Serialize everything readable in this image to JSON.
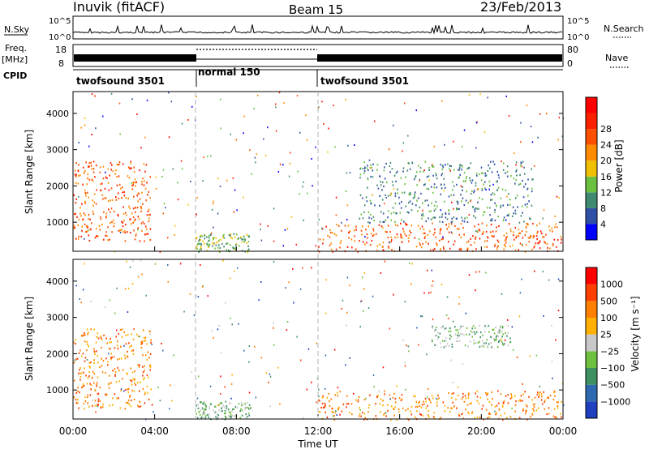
{
  "header": {
    "station": "Inuvik (fitACF)",
    "beam": "Beam 15",
    "date": "23/Feb/2013"
  },
  "left_labels": {
    "nsky": "N.Sky",
    "freq": "Freq.",
    "freq_unit": "[MHz]",
    "cpid": "CPID"
  },
  "right_labels": {
    "nsearch": "N.Search",
    "nave": "Nave"
  },
  "noise_panel": {
    "left_ticks": [
      "10^5",
      "10^0"
    ],
    "right_ticks": [
      "10^5",
      "10^0"
    ]
  },
  "freq_panel": {
    "left_ticks": [
      "18",
      "8"
    ],
    "right_ticks": [
      "80",
      "0"
    ]
  },
  "cpid_panel": {
    "segments": [
      {
        "start_h": 0,
        "end_h": 6,
        "label": "twofsound 3501"
      },
      {
        "start_h": 6,
        "end_h": 12,
        "label": "normal 150"
      },
      {
        "start_h": 12,
        "end_h": 24,
        "label": "twofsound 3501"
      }
    ]
  },
  "chart_data": [
    {
      "type": "heatmap",
      "title": "",
      "xlabel": "",
      "ylabel": "Slant Range [km]",
      "xlim": [
        0,
        24
      ],
      "ylim": [
        200,
        4600
      ],
      "y_ticks": [
        1000,
        2000,
        3000,
        4000
      ],
      "colorbar": {
        "label": "Power [dB]",
        "ticks": [
          "4",
          "8",
          "12",
          "16",
          "20",
          "24",
          "28"
        ],
        "colors": [
          "#0000ff",
          "#3050a8",
          "#3f8a70",
          "#6cc040",
          "#f0c000",
          "#ff8c00",
          "#ff5000",
          "#ff2000",
          "#ff0000"
        ]
      },
      "scatter_regions_note": "",
      "dominant_echoes": [
        {
          "t_start": 0.0,
          "t_end": 3.8,
          "range_min": 500,
          "range_max": 2700,
          "value": 24
        },
        {
          "t_start": 6.0,
          "t_end": 8.7,
          "range_min": 200,
          "range_max": 700,
          "value": 12
        },
        {
          "t_start": 12.0,
          "t_end": 23.9,
          "range_min": 200,
          "range_max": 1000,
          "value": 24
        },
        {
          "t_start": 14.0,
          "t_end": 22.5,
          "range_min": 1000,
          "range_max": 2700,
          "value": 8
        }
      ]
    },
    {
      "type": "heatmap",
      "title": "",
      "xlabel": "Time UT",
      "ylabel": "Slant Range [km]",
      "xlim": [
        0,
        24
      ],
      "ylim": [
        200,
        4600
      ],
      "x_ticks": [
        "00:00",
        "04:00",
        "08:00",
        "12:00",
        "16:00",
        "20:00",
        "00:00"
      ],
      "y_ticks": [
        1000,
        2000,
        3000,
        4000
      ],
      "colorbar": {
        "label": "Velocity [m s⁻¹]",
        "ticks": [
          "1000",
          "500",
          "100",
          "25",
          "−25",
          "−100",
          "−500",
          "−1000"
        ],
        "colors": [
          "#2040c0",
          "#2f6ab0",
          "#3f9060",
          "#70c040",
          "#c8c8c8",
          "#ffb000",
          "#ff8000",
          "#ff4000",
          "#ff0000"
        ]
      },
      "dominant_echoes": [
        {
          "t_start": 0.0,
          "t_end": 3.8,
          "range_min": 500,
          "range_max": 2700,
          "value": -500
        },
        {
          "t_start": 6.0,
          "t_end": 8.7,
          "range_min": 200,
          "range_max": 700,
          "value": 50
        },
        {
          "t_start": 12.0,
          "t_end": 23.9,
          "range_min": 200,
          "range_max": 1000,
          "value": -300
        },
        {
          "t_start": 17.5,
          "t_end": 21.5,
          "range_min": 2200,
          "range_max": 2800,
          "value": 0
        }
      ]
    }
  ],
  "colors": {
    "grey_scatter": "#c8c8c8",
    "axis": "#000000",
    "dashed_marker": "#b0b0b0"
  }
}
